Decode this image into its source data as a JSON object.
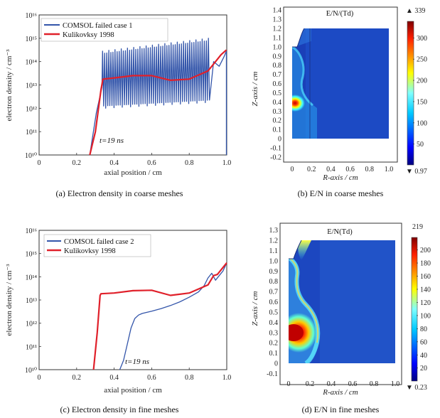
{
  "chart_data": [
    {
      "id": "a",
      "type": "line",
      "caption": "(a)  Electron density in coarse meshes",
      "xlabel": "axial position / cm",
      "ylabel": "electron density / cm⁻³",
      "xlim": [
        0,
        1
      ],
      "ylim_log10": [
        10,
        16
      ],
      "xticks": [
        "0",
        "0.2",
        "0.4",
        "0.6",
        "0.8",
        "1.0"
      ],
      "yticks": [
        "10¹⁰",
        "10¹¹",
        "10¹²",
        "10¹³",
        "10¹⁴",
        "10¹⁵",
        "10¹⁶"
      ],
      "annotation": "t=19 ns",
      "series": [
        {
          "name": "COMSOL failed case 1",
          "color": "#3355aa",
          "kind": "oscillating",
          "x_start": 0.27,
          "x_end": 0.998,
          "osc_start": 0.335,
          "osc_end": 0.91,
          "osc_cycles": 52
        },
        {
          "name": "Kulikovksy 1998",
          "color": "#e0202a",
          "x": [
            0.27,
            0.3,
            0.33,
            0.34,
            0.4,
            0.5,
            0.6,
            0.7,
            0.8,
            0.9,
            0.95,
            0.97,
            0.998
          ],
          "log10": [
            10.0,
            11.0,
            12.8,
            13.25,
            13.3,
            13.4,
            13.4,
            13.2,
            13.25,
            13.6,
            14.1,
            14.3,
            14.5
          ]
        }
      ]
    },
    {
      "id": "b",
      "type": "heatmap",
      "caption": "(b)  E/N in coarse meshes",
      "title": "E/N/(Td)",
      "xlabel": "R-axis / cm",
      "ylabel": "Z-axis / cm",
      "xlim": [
        -0.1,
        1.05
      ],
      "ylim": [
        -0.23,
        1.45
      ],
      "xticks": [
        "0",
        "0.2",
        "0.4",
        "0.6",
        "0.8",
        "1.0"
      ],
      "yticks": [
        "-0.2",
        "-0.1",
        "0",
        "0.1",
        "0.2",
        "0.3",
        "0.4",
        "0.5",
        "0.6",
        "0.7",
        "0.8",
        "0.9",
        "1.0",
        "1.1",
        "1.2",
        "1.3",
        "1.4"
      ],
      "colorbar": {
        "max_label": "▲ 339",
        "min_label": "▼ 0.97",
        "ticks": [
          "300",
          "250",
          "200",
          "150",
          "100",
          "50"
        ],
        "cmin": 0.97,
        "cmax": 339
      }
    },
    {
      "id": "c",
      "type": "line",
      "caption": "(c)  Electron density in fine meshes",
      "xlabel": "axial position / cm",
      "ylabel": "electron density / cm⁻³",
      "xlim": [
        0,
        1
      ],
      "ylim_log10": [
        10,
        16
      ],
      "xticks": [
        "0",
        "0.2",
        "0.4",
        "0.6",
        "0.8",
        "1.0"
      ],
      "yticks": [
        "10¹⁰",
        "10¹¹",
        "10¹²",
        "10¹³",
        "10¹⁴",
        "10¹⁵",
        "10¹⁶"
      ],
      "annotation": "t=19 ns",
      "series": [
        {
          "name": "COMSOL failed case 2",
          "color": "#3355aa",
          "x": [
            0.43,
            0.45,
            0.47,
            0.49,
            0.51,
            0.53,
            0.55,
            0.6,
            0.65,
            0.7,
            0.75,
            0.8,
            0.85,
            0.88,
            0.9,
            0.92,
            0.94,
            0.96,
            0.98,
            1.0
          ],
          "log10": [
            10.0,
            10.4,
            11.1,
            11.8,
            12.2,
            12.35,
            12.42,
            12.52,
            12.63,
            12.76,
            12.92,
            13.12,
            13.35,
            13.62,
            13.95,
            14.15,
            13.85,
            14.05,
            14.25,
            14.6
          ]
        },
        {
          "name": "Kulikovksy 1998",
          "color": "#e0202a",
          "x": [
            0.29,
            0.31,
            0.325,
            0.33,
            0.4,
            0.5,
            0.6,
            0.7,
            0.8,
            0.9,
            0.93,
            0.95,
            0.97,
            1.0
          ],
          "log10": [
            10.0,
            11.6,
            13.2,
            13.27,
            13.3,
            13.4,
            13.42,
            13.2,
            13.3,
            13.65,
            14.05,
            14.1,
            14.3,
            14.6
          ]
        }
      ]
    },
    {
      "id": "d",
      "type": "heatmap",
      "caption": "(d)  E/N in fine meshes",
      "title": "E/N(Td)",
      "xlabel": "R-axis / cm",
      "ylabel": "Z-axis / cm",
      "xlim": [
        -0.1,
        1.05
      ],
      "ylim": [
        -0.15,
        1.35
      ],
      "xticks": [
        "0",
        "0.2",
        "0.4",
        "0.6",
        "0.8",
        "1.0"
      ],
      "yticks": [
        "-0.1",
        "0",
        "0.1",
        "0.2",
        "0.3",
        "0.4",
        "0.5",
        "0.6",
        "0.7",
        "0.8",
        "0.9",
        "1.0",
        "1.1",
        "1.2",
        "1.3"
      ],
      "colorbar": {
        "max_label": "219",
        "min_label": "▼ 0.23",
        "ticks": [
          "200",
          "180",
          "160",
          "140",
          "120",
          "100",
          "80",
          "60",
          "40",
          "20"
        ],
        "cmin": 0.23,
        "cmax": 219
      }
    }
  ]
}
